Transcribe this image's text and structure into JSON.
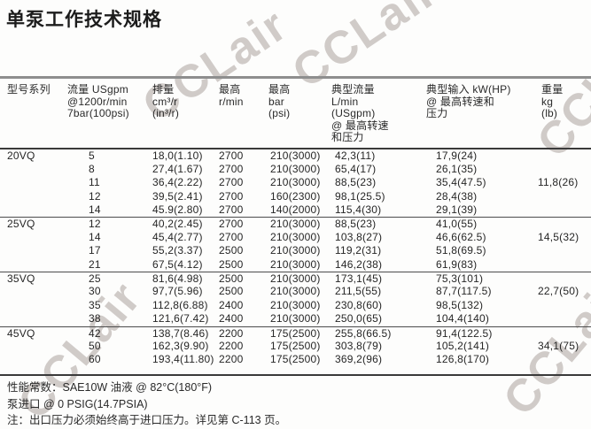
{
  "page": {
    "title": "单泵工作技术规格",
    "watermark": "CCLair"
  },
  "table": {
    "headers": {
      "model": "型号系列",
      "flow": "流量 USgpm\n@1200r/min\n7bar(100psi)",
      "displacement": "排量\ncm³/r\n(in³/r)",
      "max_speed": "最高\nr/min",
      "max_pressure": "最高\nbar\n(psi)",
      "typical_flow": "典型流量\nL/min\n(USgpm)\n@ 最高转速\n和压力",
      "typical_input": "典型输入 kW(HP)\n@ 最高转速和\n压力",
      "weight": "重量\nkg\n(lb)"
    },
    "groups": [
      {
        "model": "20VQ",
        "weight": "11,8(26)",
        "weight_row": 2,
        "rows": [
          [
            "5",
            "18,0(1.10)",
            "2700",
            "210(3000)",
            "42,3(11)",
            "17,9(24)"
          ],
          [
            "8",
            "27,4(1.67)",
            "2700",
            "210(3000)",
            "65,4(17)",
            "26,1(35)"
          ],
          [
            "11",
            "36,4(2.22)",
            "2700",
            "210(3000)",
            "88,5(23)",
            "35,4(47.5)"
          ],
          [
            "12",
            "39,5(2.41)",
            "2700",
            "160(2300)",
            "98,1(25.5)",
            "28,4(38)"
          ],
          [
            "14",
            "45.9(2.80)",
            "2700",
            "140(2000)",
            "115,4(30)",
            "29,1(39)"
          ]
        ]
      },
      {
        "model": "25VQ",
        "weight": "14,5(32)",
        "weight_row": 1,
        "rows": [
          [
            "12",
            "40,2(2.45)",
            "2700",
            "210(3000)",
            "88,5(23)",
            "41,0(55)"
          ],
          [
            "14",
            "45,4(2.77)",
            "2700",
            "210(3000)",
            "103,8(27)",
            "46,6(62.5)"
          ],
          [
            "17",
            "55,2(3.37)",
            "2500",
            "210(3000)",
            "119,2(31)",
            "51,8(69.5)"
          ],
          [
            "21",
            "67,5(4.12)",
            "2500",
            "210(3000)",
            "146,2(38)",
            "61,9(83)"
          ]
        ]
      },
      {
        "model": "35VQ",
        "weight": "22,7(50)",
        "weight_row": 1,
        "rows": [
          [
            "25",
            "81,6(4.98)",
            "2500",
            "210(3000)",
            "173,1(45)",
            "75,3(101)"
          ],
          [
            "30",
            "97,7(5.96)",
            "2500",
            "210(3000)",
            "211,5(55)",
            "87,7(117.5)"
          ],
          [
            "35",
            "112,8(6.88)",
            "2400",
            "210(3000)",
            "230,8(60)",
            "98,5(132)"
          ],
          [
            "38",
            "121,6(7.42)",
            "2400",
            "210(3000)",
            "250,0(65)",
            "104,4(140)"
          ]
        ]
      },
      {
        "model": "45VQ",
        "weight": "34,1(75)",
        "weight_row": 1,
        "rows": [
          [
            "42",
            "138,7(8.46)",
            "2200",
            "175(2500)",
            "255,8(66.5)",
            "91,4(122.5)"
          ],
          [
            "50",
            "162,3(9.90)",
            "2200",
            "175(2500)",
            "303,8(79)",
            "105,2(141)"
          ],
          [
            "60",
            "193,4(11.80)",
            "2200",
            "175(2500)",
            "369,2(96)",
            "126,8(170)"
          ]
        ]
      }
    ]
  },
  "notes": [
    "性能常数：SAE10W 油液 @ 82°C(180°F)",
    "泵进口 @ 0 PSIG(14.7PSIA)",
    "注：出口压力必须始终高于进口压力。详见第 C-113 页。"
  ]
}
